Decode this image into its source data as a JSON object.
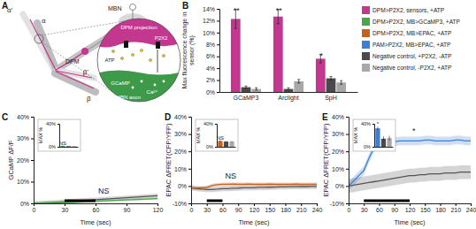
{
  "diagram": {
    "panel": "A",
    "labels": [
      "α'",
      "α",
      "MBN",
      "DPM",
      "β'",
      "β",
      "DPM projection",
      "P2X2",
      "ATP",
      "GCaMP",
      "Ca²⁺",
      "MBN axon"
    ]
  },
  "chart_data": [
    {
      "panel": "B",
      "type": "bar",
      "ylabel": "Max fluorescence change in sensor (%)",
      "categories": [
        "GCaMP3",
        "Arclight",
        "SpH"
      ],
      "series": [
        {
          "name": "DPM>P2X2, sensors, +ATP",
          "color": "#c4378f",
          "values": [
            12.3,
            12.7,
            5.6
          ],
          "errors": [
            1.6,
            1.2,
            0.7
          ]
        },
        {
          "name": "DPM>P2X2, MB>GCaMP3, +ATP",
          "color": "#4aa64a",
          "values": [
            null,
            null,
            null
          ]
        },
        {
          "name": "DPM>P2X2, MB>EPAC, +ATP",
          "color": "#c8601e",
          "values": [
            null,
            null,
            null
          ]
        },
        {
          "name": "PAM>P2X2, MB>EPAC, +ATP",
          "color": "#3d7fd6",
          "values": [
            null,
            null,
            null
          ]
        },
        {
          "name": "Negative control, +P2X2, -ATP",
          "color": "#4a4a4a",
          "values": [
            0.8,
            0.5,
            2.3
          ],
          "errors": [
            0.2,
            0.2,
            0.3
          ]
        },
        {
          "name": "Negative control, -P2X2, +ATP",
          "color": "#a8a8a8",
          "values": [
            0.5,
            1.8,
            1.6
          ],
          "errors": [
            0.2,
            0.3,
            0.3
          ]
        }
      ],
      "annotations": [
        "**",
        "**",
        "*"
      ],
      "ylim": [
        0,
        14
      ],
      "yticks": [
        {
          "value": 0,
          "label": "0%"
        },
        {
          "value": 2,
          "label": "2%"
        },
        {
          "value": 4,
          "label": "4%"
        },
        {
          "value": 6,
          "label": "6%"
        },
        {
          "value": 8,
          "label": "8%"
        },
        {
          "value": 10,
          "label": "10%"
        },
        {
          "value": 12,
          "label": "12%"
        },
        {
          "value": 14,
          "label": "14%"
        }
      ],
      "legend": "right"
    },
    {
      "panel": "C",
      "type": "line",
      "xlabel": "Time (sec)",
      "ylabel": "GCaMP ΔF/F",
      "x": [
        0,
        10,
        20,
        30,
        40,
        50,
        60,
        70,
        80,
        90,
        100,
        110,
        120
      ],
      "series": [
        {
          "color": "#4aa64a",
          "values": [
            0,
            0.1,
            0.2,
            0.4,
            0.6,
            0.8,
            1,
            1.2,
            1.4,
            1.6,
            1.8,
            2,
            2.2
          ],
          "errors": [
            0.5,
            0.5,
            0.5,
            0.5,
            0.5,
            0.5,
            0.5,
            0.5,
            0.5,
            0.5,
            0.5,
            0.5,
            0.5
          ]
        },
        {
          "color": "#555555",
          "values": [
            0,
            0.2,
            0.5,
            0.8,
            1.1,
            1.4,
            1.7,
            2,
            2.3,
            2.6,
            2.9,
            3.2,
            3.5
          ],
          "errors": [
            1,
            1,
            1,
            1,
            1,
            1,
            1,
            1,
            1,
            1,
            1,
            1,
            1
          ]
        }
      ],
      "stimulus": [
        30,
        60
      ],
      "annotations": [
        "NS"
      ],
      "xlim": [
        0,
        120
      ],
      "xticks": [
        0,
        30,
        60,
        90,
        120
      ],
      "ylim": [
        0,
        40
      ],
      "yticks": [
        {
          "value": 0,
          "label": "0%"
        },
        {
          "value": 10,
          "label": "10%"
        },
        {
          "value": 20,
          "label": "20%"
        },
        {
          "value": 30,
          "label": "30%"
        },
        {
          "value": 40,
          "label": "40%"
        }
      ],
      "inset": {
        "type": "bar",
        "ylabel": "MAX %",
        "categories": [
          null,
          null,
          null
        ],
        "values": [
          1.5,
          1,
          1
        ],
        "errors": [
          0.5,
          0.3,
          0.3
        ],
        "colors": [
          "#4aa64a",
          "#4a4a4a",
          "#a8a8a8"
        ],
        "annotations": [
          "NS"
        ],
        "ylim": [
          0,
          40
        ],
        "yticks": [
          {
            "value": 0,
            "label": "0%"
          },
          {
            "value": 40,
            "label": "40%"
          }
        ]
      }
    },
    {
      "panel": "D",
      "type": "line",
      "xlabel": "Time (sec)",
      "ylabel": "EPAC ΔFRET(CFP/YFP)",
      "x": [
        0,
        10,
        20,
        30,
        40,
        50,
        60,
        70,
        80,
        90,
        100,
        110,
        120,
        130,
        140,
        150,
        160,
        170,
        180,
        190,
        200,
        210,
        220,
        230,
        240
      ],
      "series": [
        {
          "color": "#c8601e",
          "values": [
            -1,
            -1.2,
            -1,
            -0.8,
            0.3,
            0.8,
            1,
            1,
            1.1,
            1,
            1,
            1.1,
            1,
            1,
            1,
            1.1,
            1,
            1,
            1,
            1,
            1.1,
            1,
            1,
            1,
            1
          ],
          "errors": [
            1,
            1,
            1,
            1,
            1,
            1,
            1,
            1,
            1,
            1,
            1,
            1,
            1,
            1,
            1,
            1,
            1,
            1,
            1,
            1,
            1,
            1,
            1,
            1,
            1
          ]
        },
        {
          "color": "#555555",
          "values": [
            -1,
            -1.5,
            -1.8,
            -2,
            -2,
            -1.8,
            -1.5,
            -1.5,
            -1.3,
            -1.2,
            -1,
            -1,
            -1,
            -0.8,
            -0.8,
            -0.7,
            -0.6,
            -0.5,
            -0.5,
            -0.4,
            -0.4,
            -0.3,
            -0.3,
            -0.2,
            -0.2
          ],
          "errors": [
            1.5,
            1.5,
            1.5,
            1.5,
            1.5,
            1.5,
            1.5,
            1.5,
            1.5,
            1.5,
            1.5,
            1.5,
            1.5,
            1.5,
            1.5,
            1.5,
            1.5,
            1.5,
            1.5,
            1.5,
            1.5,
            1.5,
            1.5,
            1.5,
            1.5
          ]
        }
      ],
      "stimulus": [
        30,
        60
      ],
      "annotations": [
        "NS"
      ],
      "xlim": [
        0,
        240
      ],
      "xticks": [
        0,
        30,
        60,
        90,
        120,
        150,
        180,
        210,
        240
      ],
      "ylim": [
        -10,
        40
      ],
      "yticks": [
        {
          "value": -10,
          "label": "-10%"
        },
        {
          "value": 0,
          "label": "0%"
        },
        {
          "value": 10,
          "label": "10%"
        },
        {
          "value": 20,
          "label": "20%"
        },
        {
          "value": 30,
          "label": "30%"
        },
        {
          "value": 40,
          "label": "40%"
        }
      ],
      "inset": {
        "type": "bar",
        "ylabel": "MAX %",
        "categories": [
          null,
          null,
          null
        ],
        "values": [
          10,
          9,
          9
        ],
        "errors": [
          1.5,
          1,
          1
        ],
        "colors": [
          "#c8601e",
          "#4a4a4a",
          "#a8a8a8"
        ],
        "annotations": [
          "NS"
        ],
        "ylim": [
          0,
          40
        ],
        "yticks": [
          {
            "value": 0,
            "label": "0%"
          },
          {
            "value": 40,
            "label": "40%"
          }
        ]
      }
    },
    {
      "panel": "E",
      "type": "line",
      "xlabel": "Time (sec)",
      "ylabel": "EPAC ΔFRET(CFP/YFP)",
      "x": [
        0,
        10,
        20,
        30,
        40,
        50,
        60,
        70,
        80,
        90,
        100,
        110,
        120,
        130,
        140,
        150,
        160,
        170,
        180,
        190,
        200,
        210,
        220,
        230,
        240
      ],
      "series": [
        {
          "color": "#3d7fd6",
          "values": [
            0,
            3,
            6,
            9,
            16,
            22,
            24,
            25,
            25,
            25.5,
            26,
            26,
            26,
            26,
            26,
            26.5,
            26.5,
            26,
            26,
            26,
            26,
            26.5,
            26.5,
            26,
            26
          ],
          "errors": [
            2.5,
            2.5,
            2.5,
            2.5,
            2.5,
            2.5,
            2.5,
            2.5,
            2.5,
            2.5,
            2.5,
            2.5,
            2.5,
            2.5,
            2.5,
            2.5,
            2.5,
            2.5,
            2.5,
            2.5,
            2.5,
            2.5,
            2.5,
            2.5,
            2.5
          ]
        },
        {
          "color": "#555555",
          "values": [
            0,
            0.5,
            1,
            1.5,
            2,
            2.5,
            3,
            3.5,
            4,
            4.5,
            5,
            5.5,
            6,
            6,
            6.5,
            6.5,
            7,
            7,
            7,
            7.5,
            7.5,
            7.5,
            8,
            8,
            8
          ],
          "errors": [
            4,
            4,
            4,
            4,
            4,
            4,
            4,
            4,
            4,
            4,
            4,
            4,
            4,
            4,
            4,
            4,
            4,
            4,
            4,
            4,
            4,
            4,
            4,
            4,
            4
          ]
        }
      ],
      "stimulus": [
        30,
        120
      ],
      "annotations": [
        "*"
      ],
      "xlim": [
        0,
        240
      ],
      "xticks": [
        0,
        30,
        60,
        90,
        120,
        150,
        180,
        210,
        240
      ],
      "ylim": [
        -10,
        40
      ],
      "yticks": [
        {
          "value": -10,
          "label": "-10%"
        },
        {
          "value": 0,
          "label": "0%"
        },
        {
          "value": 10,
          "label": "10%"
        },
        {
          "value": 20,
          "label": "20%"
        },
        {
          "value": 30,
          "label": "30%"
        },
        {
          "value": 40,
          "label": "40%"
        }
      ],
      "inset": {
        "type": "bar",
        "ylabel": "MAX %",
        "categories": [
          null,
          null,
          null
        ],
        "values": [
          32,
          14,
          15
        ],
        "errors": [
          3,
          4,
          4
        ],
        "colors": [
          "#3d7fd6",
          "#4a4a4a",
          "#a8a8a8"
        ],
        "annotations": [
          "*"
        ],
        "ylim": [
          0,
          40
        ],
        "yticks": [
          {
            "value": 0,
            "label": "0%"
          },
          {
            "value": 40,
            "label": "40%"
          }
        ]
      }
    }
  ]
}
